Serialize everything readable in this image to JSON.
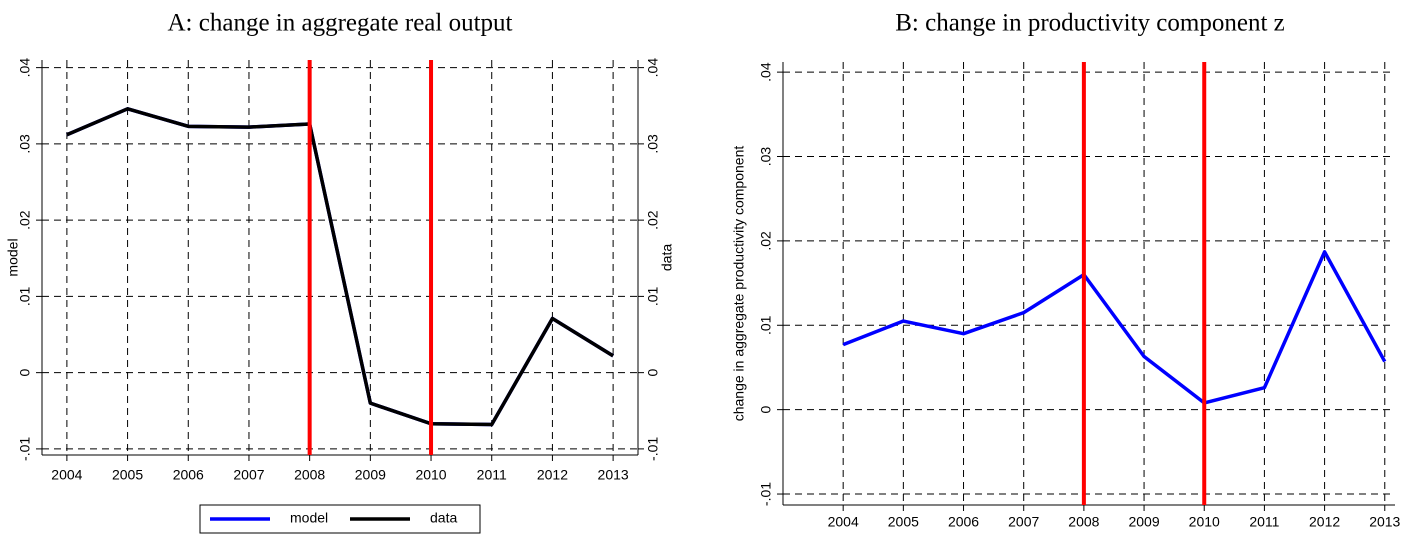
{
  "chart_data": [
    {
      "type": "line",
      "title": "A: change in aggregate real output",
      "x": [
        2004,
        2005,
        2006,
        2007,
        2008,
        2009,
        2010,
        2011,
        2012,
        2013
      ],
      "series": [
        {
          "name": "model",
          "color": "#0000ff",
          "values": [
            0.0312,
            0.0346,
            0.0323,
            0.0322,
            0.0326,
            -0.004,
            -0.0067,
            -0.0068,
            0.0071,
            0.0022
          ]
        },
        {
          "name": "data",
          "color": "#000000",
          "values": [
            0.0312,
            0.0346,
            0.0323,
            0.0322,
            0.0326,
            -0.004,
            -0.0067,
            -0.0068,
            0.0071,
            0.0022
          ]
        }
      ],
      "xlim": [
        2003.59,
        2013.41
      ],
      "ylim": [
        -0.0108,
        0.041
      ],
      "xticks": [
        2004,
        2005,
        2006,
        2007,
        2008,
        2009,
        2010,
        2011,
        2012,
        2013
      ],
      "yticks": [
        {
          "value": -0.01,
          "label": "-.01"
        },
        0,
        {
          "value": 0.01,
          "label": ".01"
        },
        {
          "value": 0.02,
          "label": ".02"
        },
        {
          "value": 0.03,
          "label": ".03"
        },
        {
          "value": 0.04,
          "label": ".04"
        }
      ],
      "y2lim": [
        -0.0108,
        0.041
      ],
      "y2ticks": [
        {
          "value": -0.01,
          "label": "-.01"
        },
        0,
        {
          "value": 0.01,
          "label": ".01"
        },
        {
          "value": 0.02,
          "label": ".02"
        },
        {
          "value": 0.03,
          "label": ".03"
        },
        {
          "value": 0.04,
          "label": ".04"
        }
      ],
      "ylabel": "model",
      "y2label": "data",
      "vlines": [
        2008,
        2010
      ],
      "vline_color": "#ff0000",
      "grid": true,
      "legend": "bottom"
    },
    {
      "type": "line",
      "title": "B: change in productivity component z",
      "x": [
        2004,
        2005,
        2006,
        2007,
        2008,
        2009,
        2010,
        2011,
        2012,
        2013
      ],
      "series": [
        {
          "color": "#0000ff",
          "values": [
            0.0077,
            0.0105,
            0.009,
            0.0115,
            0.016,
            0.0063,
            0.0008,
            0.0026,
            0.0187,
            0.0057
          ]
        }
      ],
      "xlim": [
        2003.0,
        2013.17
      ],
      "ylim": [
        -0.0113,
        0.0412
      ],
      "xticks": [
        2004,
        2005,
        2006,
        2007,
        2008,
        2009,
        2010,
        2011,
        2012,
        2013
      ],
      "yticks": [
        {
          "value": -0.01,
          "label": "-.01"
        },
        0,
        {
          "value": 0.01,
          "label": ".01"
        },
        {
          "value": 0.02,
          "label": ".02"
        },
        {
          "value": 0.03,
          "label": ".03"
        },
        {
          "value": 0.04,
          "label": ".04"
        }
      ],
      "ylabel": "change in aggregate productivity component",
      "vlines": [
        2008,
        2010
      ],
      "vline_color": "#ff0000",
      "grid": true
    }
  ]
}
